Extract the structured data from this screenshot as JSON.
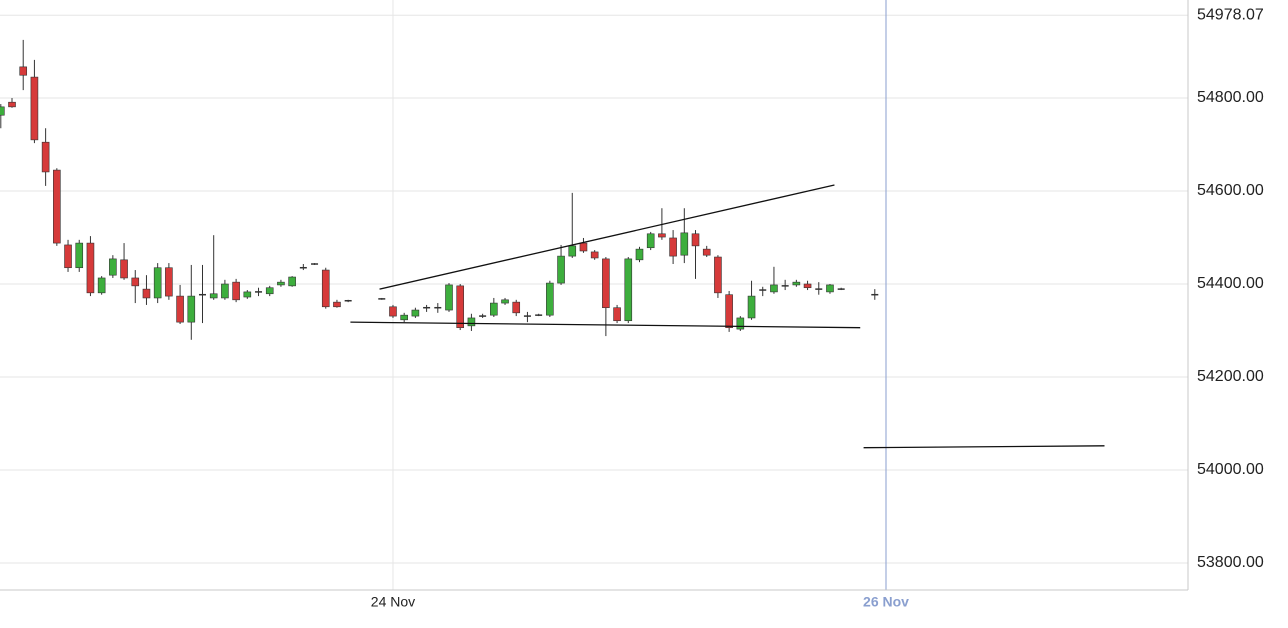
{
  "chart_data": {
    "type": "candlestick",
    "categories": [
      null,
      null,
      null,
      null,
      null,
      null,
      null,
      null,
      null,
      null,
      null,
      null,
      null,
      null,
      null,
      null,
      null,
      null,
      null,
      null,
      null,
      null,
      null,
      null,
      null,
      null,
      null,
      null,
      null,
      null,
      null,
      null,
      null,
      null,
      null,
      "24 Nov",
      null,
      null,
      null,
      null,
      null,
      null,
      null,
      null,
      null,
      null,
      null,
      null,
      null,
      null,
      null,
      null,
      null,
      null,
      null,
      null,
      null,
      null,
      null,
      null,
      null,
      null,
      null,
      null,
      null,
      null,
      null,
      null,
      null,
      null,
      null,
      null,
      null,
      null,
      null,
      null,
      null,
      null,
      null,
      "26 Nov"
    ],
    "open": [
      54763,
      54791,
      54867,
      54845,
      54705,
      54645,
      54484,
      54435,
      54488,
      54381,
      54419,
      54452,
      54413,
      54389,
      54370,
      54435,
      54374,
      54318,
      54377,
      54370,
      54370,
      54404,
      54372,
      54383,
      54379,
      54398,
      54396,
      54435,
      54443,
      54430,
      54361,
      54364,
      null,
      null,
      54368,
      54351,
      54323,
      54331,
      54349,
      54349,
      54344,
      54396,
      54310,
      54331,
      54333,
      54359,
      54361,
      54331,
      54333,
      54333,
      54402,
      54460,
      54488,
      54469,
      54454,
      54349,
      54321,
      54452,
      54478,
      54508,
      54499,
      54462,
      54508,
      54475,
      54458,
      54377,
      54303,
      54327,
      54387,
      54383,
      54396,
      54398,
      54400,
      54389,
      54383,
      54389,
      null,
      null,
      54377,
      null
    ],
    "high": [
      54787,
      54800,
      54925,
      54882,
      54735,
      54649,
      54495,
      54495,
      54503,
      54417,
      54462,
      54488,
      54430,
      54419,
      54445,
      54445,
      54398,
      54441,
      54441,
      54505,
      54409,
      54411,
      54387,
      54392,
      54396,
      54409,
      54417,
      54443,
      54445,
      54435,
      54366,
      54366,
      null,
      null,
      54370,
      54355,
      54338,
      54349,
      54355,
      54359,
      54402,
      54400,
      54336,
      54336,
      54370,
      54370,
      54366,
      54340,
      54336,
      54407,
      54484,
      54596,
      54499,
      54473,
      54458,
      54355,
      54458,
      54480,
      54512,
      54563,
      54516,
      54563,
      54516,
      54482,
      54462,
      54385,
      54331,
      54407,
      54394,
      54437,
      54409,
      54409,
      54407,
      54404,
      54400,
      54392,
      null,
      null,
      54389,
      null
    ],
    "low": [
      54735,
      54779,
      54817,
      54703,
      54611,
      54482,
      54426,
      54426,
      54374,
      54377,
      54413,
      54409,
      54359,
      54355,
      54359,
      54366,
      54314,
      54280,
      54316,
      54366,
      54366,
      54361,
      54368,
      54374,
      54374,
      54394,
      54394,
      54430,
      54441,
      54347,
      54349,
      54361,
      null,
      null,
      54366,
      54327,
      54318,
      54327,
      54340,
      54338,
      54340,
      54301,
      54299,
      54327,
      54329,
      54355,
      54331,
      54318,
      54331,
      54329,
      54398,
      54456,
      54467,
      54452,
      54288,
      54316,
      54316,
      54447,
      54473,
      54495,
      54443,
      54445,
      54411,
      54458,
      54370,
      54297,
      54299,
      54323,
      54374,
      54379,
      54387,
      54394,
      54387,
      54377,
      54379,
      54387,
      null,
      null,
      54366,
      null
    ],
    "close": [
      54781,
      54781,
      54849,
      54710,
      54641,
      54488,
      54435,
      54488,
      54381,
      54413,
      54454,
      54413,
      54396,
      54370,
      54435,
      54374,
      54318,
      54374,
      54377,
      54379,
      54400,
      54366,
      54383,
      54383,
      54392,
      54404,
      54415,
      54435,
      54443,
      54351,
      54351,
      54364,
      null,
      null,
      54368,
      54331,
      54333,
      54344,
      54349,
      54349,
      54398,
      54306,
      54327,
      54331,
      54359,
      54366,
      54338,
      54331,
      54333,
      54402,
      54460,
      54482,
      54471,
      54456,
      54349,
      54321,
      54454,
      54475,
      54508,
      54501,
      54460,
      54510,
      54482,
      54462,
      54381,
      54306,
      54327,
      54374,
      54387,
      54398,
      54396,
      54404,
      54392,
      54389,
      54398,
      54389,
      null,
      null,
      54377,
      null
    ],
    "trendlines": [
      {
        "from": [
          33.8,
          54389
        ],
        "to": [
          74.4,
          54613
        ]
      },
      {
        "from": [
          31.2,
          54318
        ],
        "to": [
          76.7,
          54306
        ]
      },
      {
        "from": [
          77.0,
          54048
        ],
        "to": [
          98.5,
          54052
        ]
      }
    ],
    "ylim": [
      53741.9,
      55010.8
    ],
    "yticks": [
      {
        "value": 53800,
        "label": "53800.00"
      },
      {
        "value": 54000,
        "label": "54000.00"
      },
      {
        "value": 54200,
        "label": "54200.00"
      },
      {
        "value": 54400,
        "label": "54400.00"
      },
      {
        "value": 54600,
        "label": "54600.00"
      },
      {
        "value": 54800,
        "label": "54800.00"
      },
      {
        "value": 54978.07,
        "label": "54978.07"
      }
    ],
    "grid": true,
    "cursor": 79,
    "cursor_color": "#8a9fcf",
    "up_color": "#3dae3d",
    "down_color": "#d63a3a",
    "wick_color": "#333333"
  }
}
